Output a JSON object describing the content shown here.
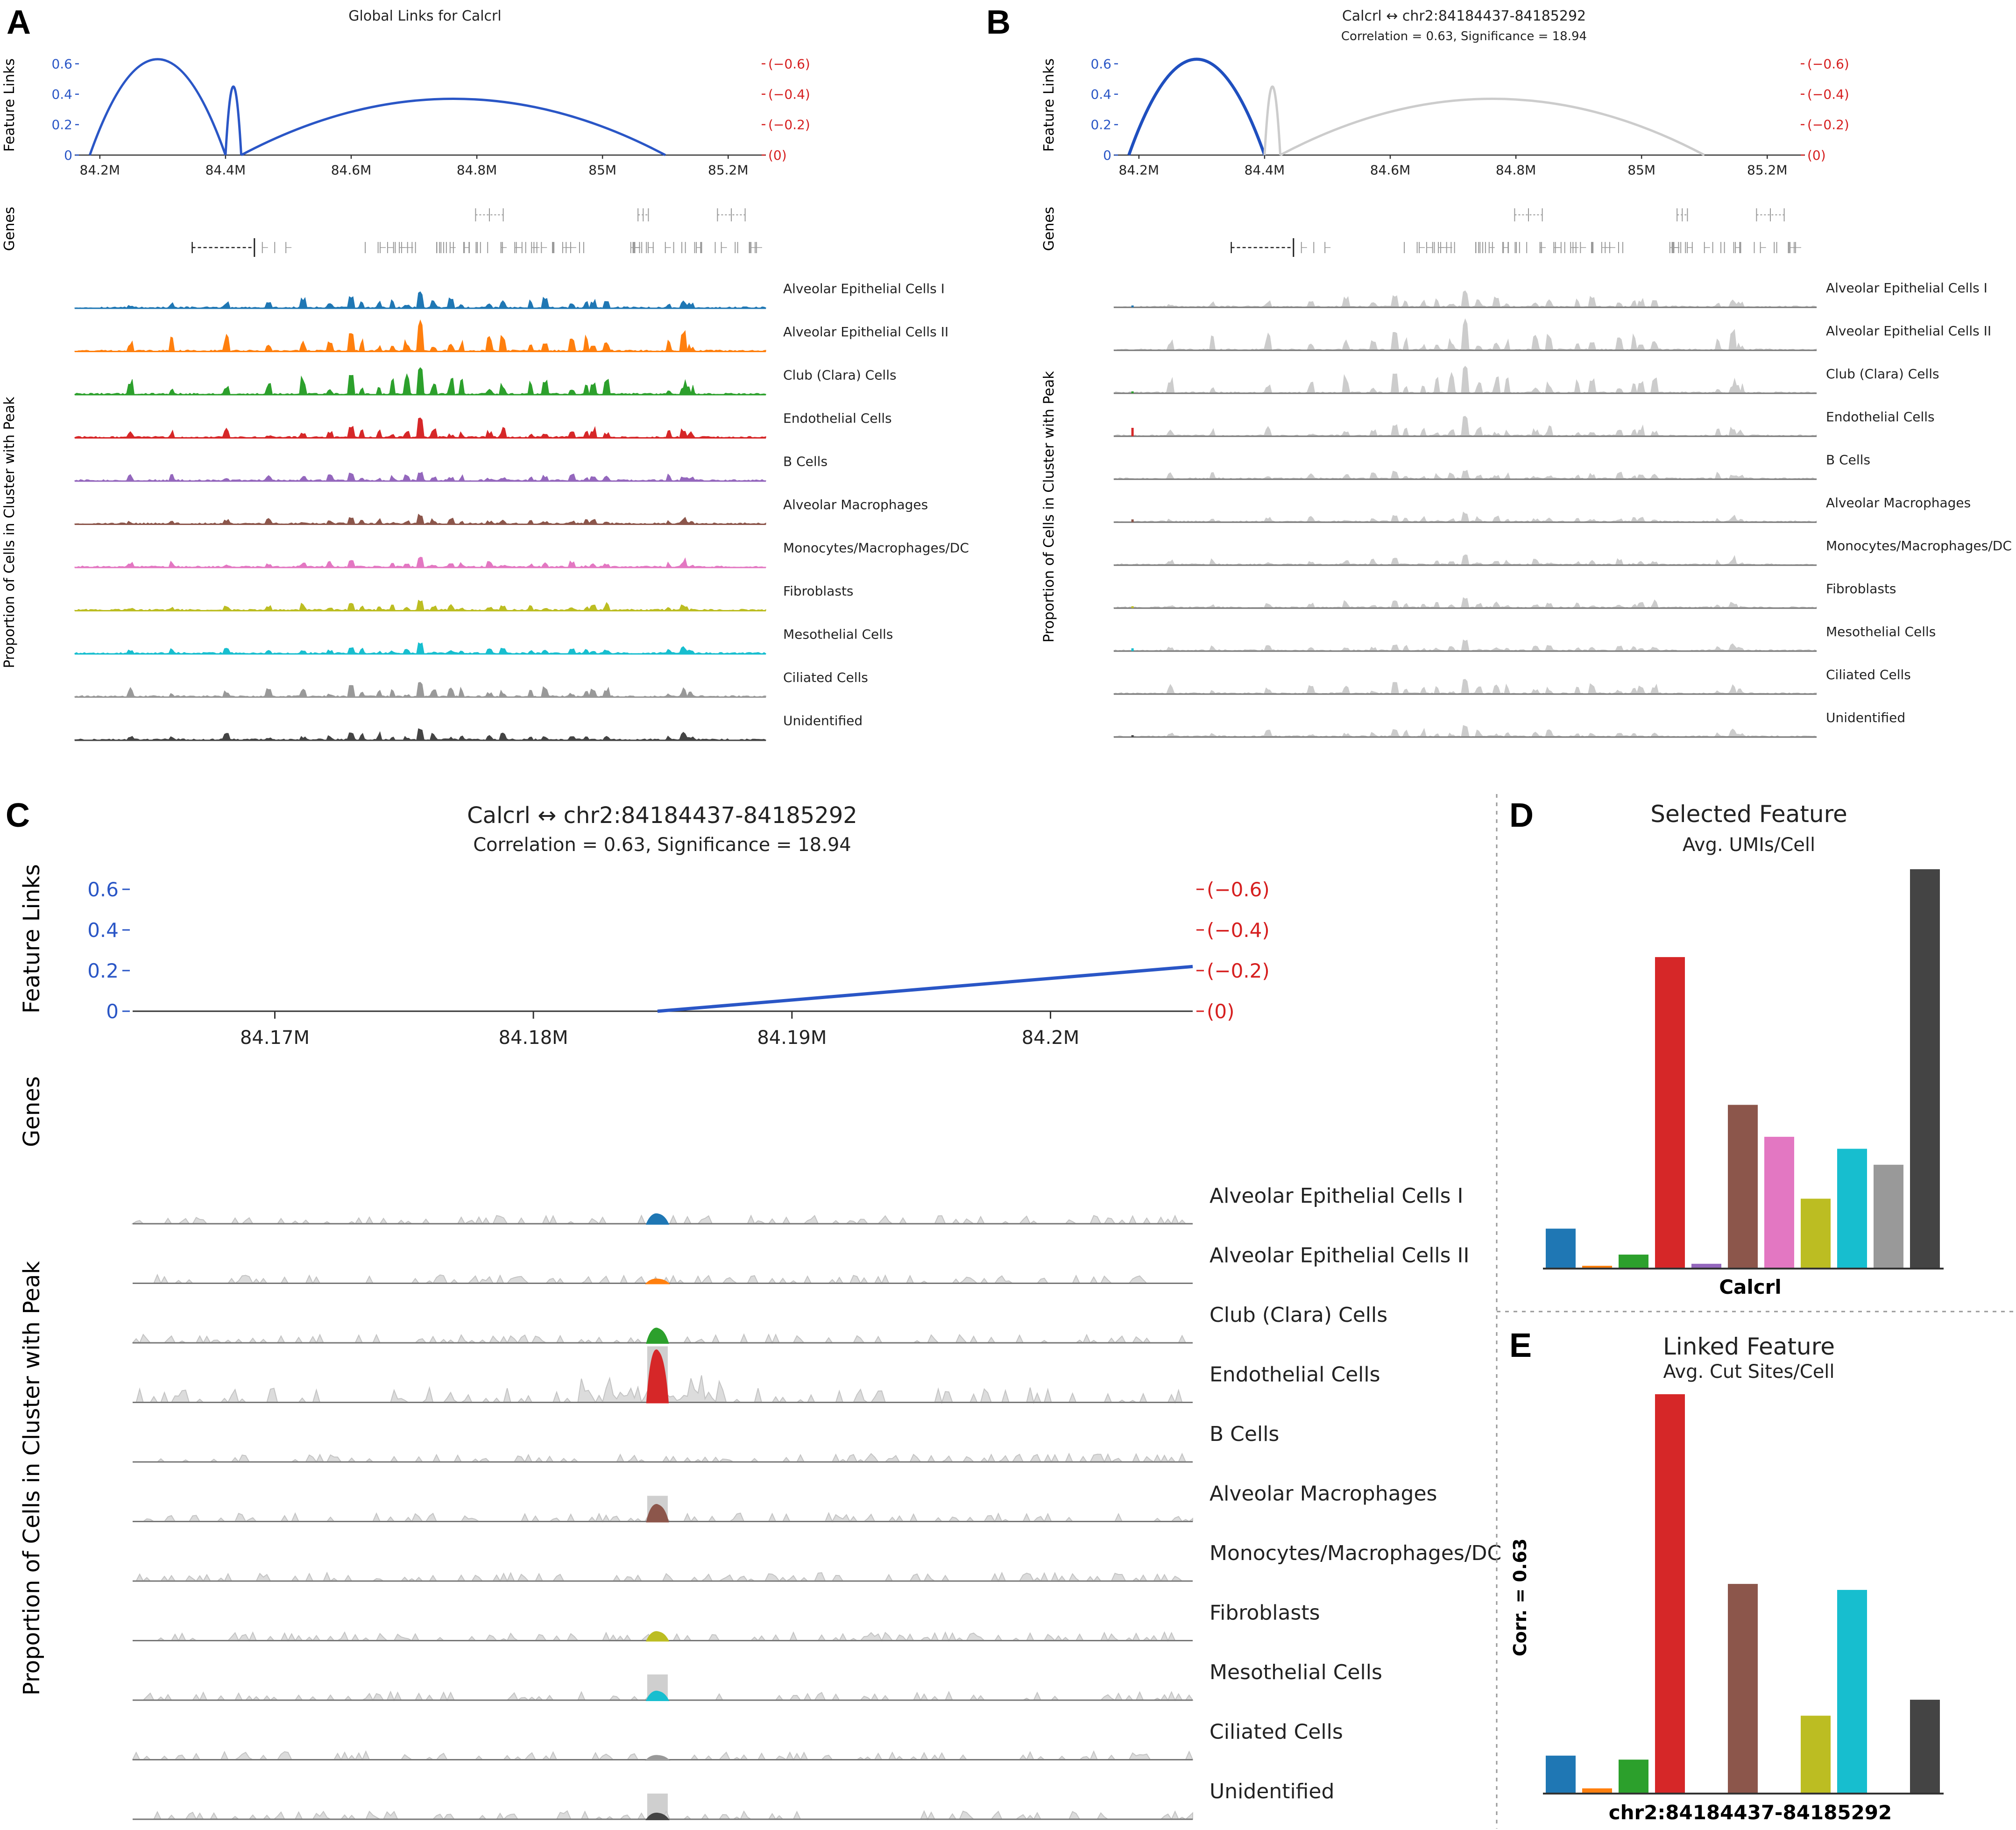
{
  "panels": {
    "A": {
      "letter": "A",
      "title": "Global Links for Calcrl"
    },
    "B": {
      "letter": "B",
      "title": "Calcrl ↔ chr2:84184437-84185292",
      "subtitle": "Correlation = 0.63, Significance = 18.94"
    },
    "C": {
      "letter": "C",
      "title": "Calcrl ↔ chr2:84184437-84185292",
      "subtitle": "Correlation = 0.63, Significance = 18.94"
    },
    "D": {
      "letter": "D",
      "title": "Selected Feature",
      "subtitle": "Avg. UMIs/Cell",
      "xlabel": "Calcrl"
    },
    "E": {
      "letter": "E",
      "title": "Linked Feature",
      "subtitle": "Avg. Cut Sites/Cell",
      "xlabel": "chr2:84184437-84185292",
      "ylabel": "Corr. = 0.63"
    }
  },
  "axis_labels": {
    "feature_links": "Feature Links",
    "genes": "Genes",
    "proportion": "Proportion of Cells in Cluster with Peak"
  },
  "colors": {
    "positive_axis": "#2a56c6",
    "negative_axis": "#d61f1f",
    "inactive": "#cccccc"
  },
  "clusters": [
    {
      "name": "Alveolar Epithelial Cells I",
      "color": "#1f77b4"
    },
    {
      "name": "Alveolar Epithelial Cells II",
      "color": "#ff7f0e"
    },
    {
      "name": "Club (Clara) Cells",
      "color": "#2ca02c"
    },
    {
      "name": "Endothelial Cells",
      "color": "#d62728"
    },
    {
      "name": "B Cells",
      "color": "#9467bd"
    },
    {
      "name": "Alveolar Macrophages",
      "color": "#8c564b"
    },
    {
      "name": "Monocytes/Macrophages/DC",
      "color": "#e377c2"
    },
    {
      "name": "Fibroblasts",
      "color": "#bcbd22"
    },
    {
      "name": "Mesothelial Cells",
      "color": "#17becf"
    },
    {
      "name": "Ciliated Cells",
      "color": "#999999"
    },
    {
      "name": "Unidentified",
      "color": "#444444"
    }
  ],
  "chart_data": [
    {
      "panel": "A",
      "type": "line",
      "title": "Global Links for Calcrl",
      "xlabel": "",
      "ylabel": "Feature Links",
      "x_range": [
        84.16,
        85.26
      ],
      "x_ticks": [
        "84.2M",
        "84.4M",
        "84.6M",
        "84.8M",
        "85M",
        "85.2M"
      ],
      "x_tick_values": [
        84.2,
        84.4,
        84.6,
        84.8,
        85.0,
        85.2
      ],
      "y_ticks_left": [
        "0",
        "0.2",
        "0.4",
        "0.6"
      ],
      "y_ticks_right": [
        "(0)",
        "(−0.2)",
        "(−0.4)",
        "(−0.6)"
      ],
      "ylim": [
        0,
        0.7
      ],
      "links": [
        {
          "start": 84.184,
          "end": 84.4,
          "correlation": 0.63
        },
        {
          "start": 84.4,
          "end": 84.425,
          "correlation": 0.45
        },
        {
          "start": 84.425,
          "end": 85.1,
          "correlation": 0.37
        }
      ]
    },
    {
      "panel": "B",
      "type": "line",
      "title": "Calcrl ↔ chr2:84184437-84185292",
      "subtitle": "Correlation = 0.63, Significance = 18.94",
      "ylabel": "Feature Links",
      "x_range": [
        84.16,
        85.26
      ],
      "x_ticks": [
        "84.2M",
        "84.4M",
        "84.6M",
        "84.8M",
        "85M",
        "85.2M"
      ],
      "x_tick_values": [
        84.2,
        84.4,
        84.6,
        84.8,
        85.0,
        85.2
      ],
      "y_ticks_left": [
        "0",
        "0.2",
        "0.4",
        "0.6"
      ],
      "y_ticks_right": [
        "(0)",
        "(−0.2)",
        "(−0.4)",
        "(−0.6)"
      ],
      "ylim": [
        0,
        0.7
      ],
      "highlighted_link": {
        "start": 84.184,
        "end": 84.4,
        "correlation": 0.63
      }
    },
    {
      "panel": "C",
      "type": "line",
      "title": "Calcrl ↔ chr2:84184437-84185292",
      "subtitle": "Correlation = 0.63, Significance = 18.94",
      "ylabel": "Feature Links",
      "x_range": [
        84.1645,
        84.2055
      ],
      "x_ticks": [
        "84.17M",
        "84.18M",
        "84.19M",
        "84.2M"
      ],
      "x_tick_values": [
        84.17,
        84.18,
        84.19,
        84.2
      ],
      "y_ticks_left": [
        "0",
        "0.2",
        "0.4",
        "0.6"
      ],
      "y_ticks_right": [
        "(0)",
        "(−0.2)",
        "(−0.4)",
        "(−0.6)"
      ],
      "ylim": [
        0,
        0.7
      ],
      "link_segment": {
        "x": [
          84.1848,
          84.2055
        ],
        "y": [
          0,
          0.22
        ]
      },
      "peak_position": 84.1848
    },
    {
      "panel": "D",
      "type": "bar",
      "title": "Selected Feature",
      "subtitle": "Avg. UMIs/Cell",
      "xlabel": "Calcrl",
      "categories": [
        "Alveolar Epithelial Cells I",
        "Alveolar Epithelial Cells II",
        "Club (Clara) Cells",
        "Endothelial Cells",
        "B Cells",
        "Alveolar Macrophages",
        "Monocytes/Macrophages/DC",
        "Fibroblasts",
        "Mesothelial Cells",
        "Ciliated Cells",
        "Unidentified"
      ],
      "values": [
        10,
        0.7,
        3.5,
        78,
        1.2,
        41,
        33,
        17.5,
        30,
        26,
        100
      ],
      "ylim": [
        0,
        100
      ]
    },
    {
      "panel": "E",
      "type": "bar",
      "title": "Linked Feature",
      "subtitle": "Avg. Cut Sites/Cell",
      "xlabel": "chr2:84184437-84185292",
      "ylabel": "Corr. = 0.63",
      "categories": [
        "Alveolar Epithelial Cells I",
        "Alveolar Epithelial Cells II",
        "Club (Clara) Cells",
        "Endothelial Cells",
        "B Cells",
        "Alveolar Macrophages",
        "Monocytes/Macrophages/DC",
        "Fibroblasts",
        "Mesothelial Cells",
        "Ciliated Cells",
        "Unidentified"
      ],
      "values": [
        9.5,
        1.3,
        8.5,
        100,
        0,
        52.5,
        0,
        19.5,
        51,
        0,
        23.5
      ],
      "ylim": [
        0,
        100
      ]
    }
  ]
}
